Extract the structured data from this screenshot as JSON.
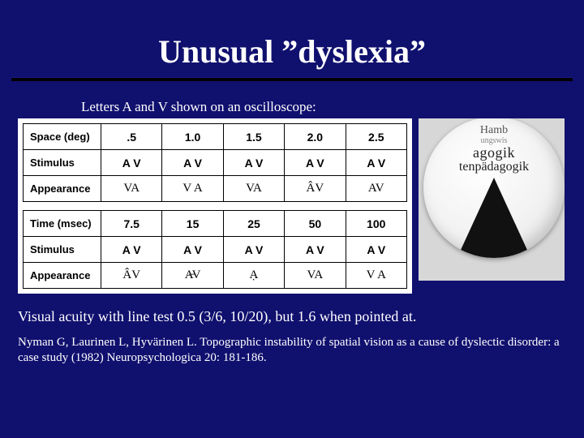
{
  "title": "Unusual ”dyslexia”",
  "subhead": "Letters A and V shown on an oscilloscope:",
  "tableTop": {
    "rowLabels": [
      "Space (deg)",
      "Stimulus",
      "Appearance"
    ],
    "headers": [
      ".5",
      "1.0",
      "1.5",
      "2.0",
      "2.5"
    ],
    "stimulus": [
      "A V",
      "A V",
      "A  V",
      "A   V",
      "A    V"
    ],
    "appearance": [
      "VA",
      "V A",
      "VA",
      "ÂV",
      "AV"
    ]
  },
  "tableBottom": {
    "rowLabels": [
      "Time (msec)",
      "Stimulus",
      "Appearance"
    ],
    "headers": [
      "7.5",
      "15",
      "25",
      "50",
      "100"
    ],
    "stimulus": [
      "A V",
      "A V",
      "A V",
      "A V",
      "A V"
    ],
    "appearance": [
      "ÂV",
      "A̶V",
      "Ạ",
      "VA",
      "V  A"
    ]
  },
  "lens": {
    "line1": "Hamb",
    "line2": "ungswis",
    "line3": "agogik",
    "line4": "tenpädagogik"
  },
  "foot1": "Visual acuity with line test 0.5 (3/6, 10/20), but 1.6 when pointed at.",
  "foot2": "Nyman G, Laurinen L, Hyvärinen L. Topographic instability of spatial vision as a cause of dyslectic disorder: a case study (1982) Neuropsychologica 20: 181-186.",
  "colors": {
    "background": "#10106f",
    "text": "#ffffff",
    "tableBg": "#ffffff",
    "border": "#000000"
  }
}
